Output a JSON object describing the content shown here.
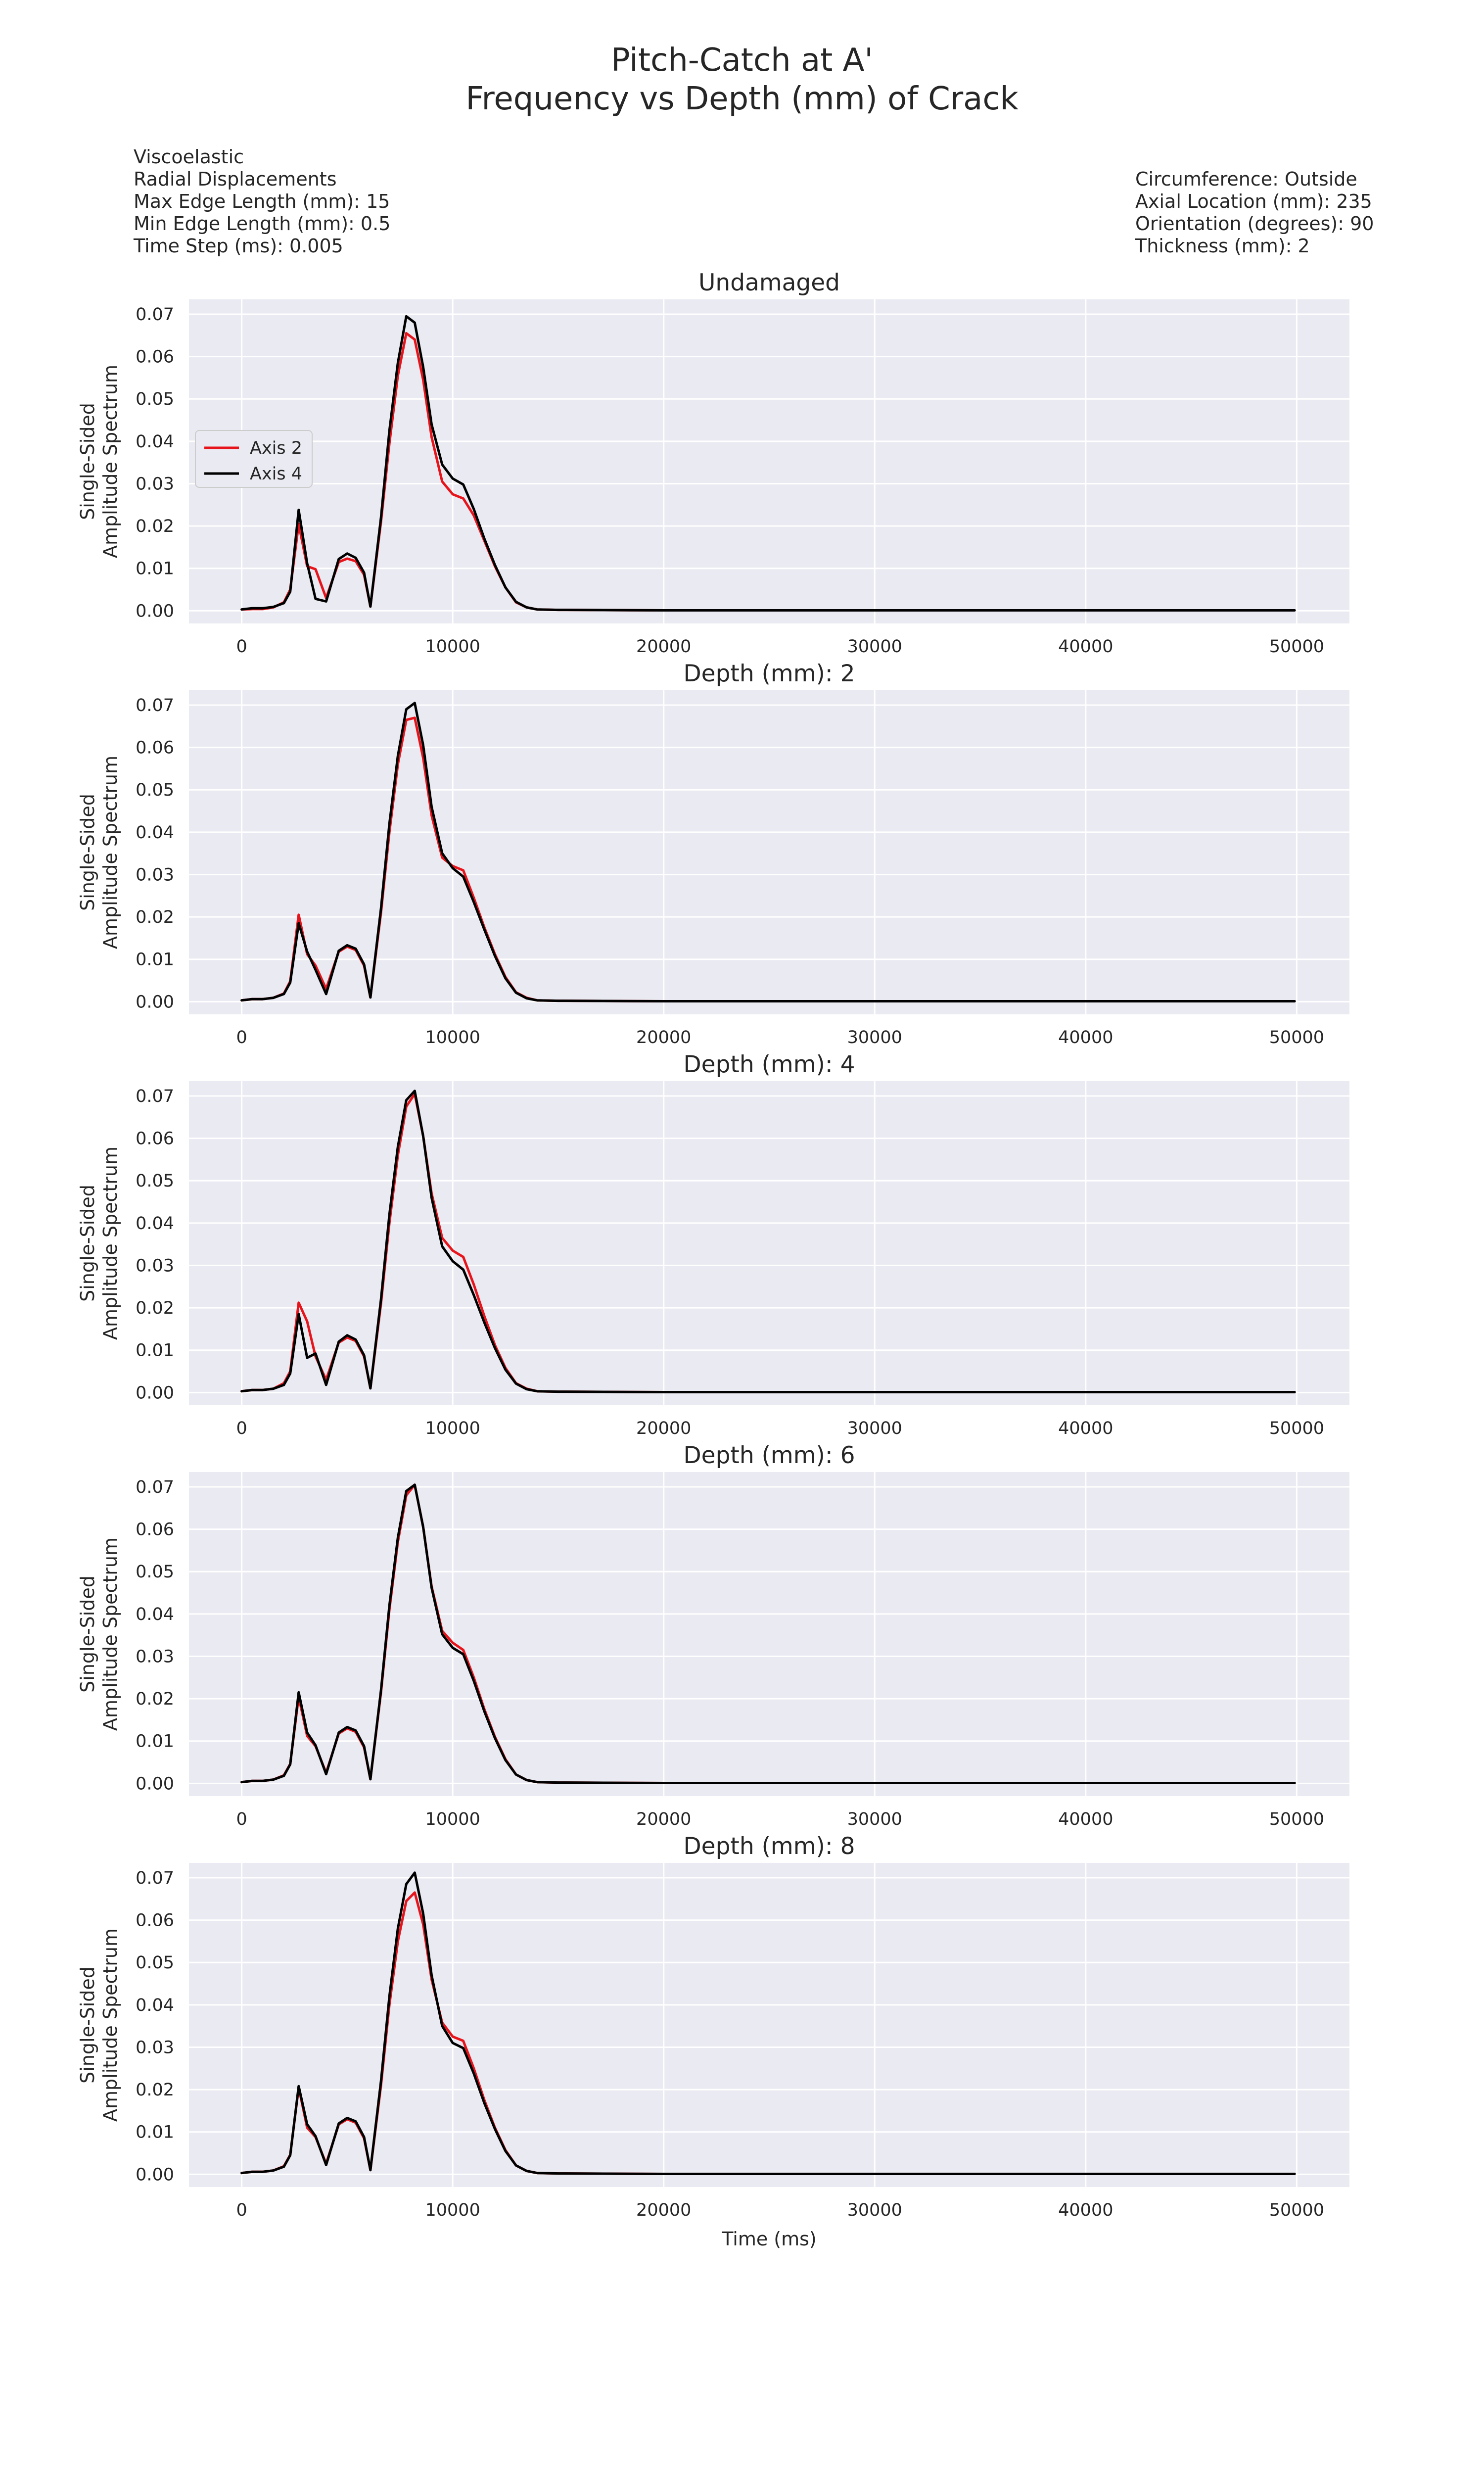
{
  "figure": {
    "title_line1": "Pitch-Catch at A'",
    "title_line2": "Frequency vs Depth (mm) of Crack",
    "info_left": [
      "Viscoelastic",
      "Radial Displacements",
      "Max Edge Length (mm): 15",
      "Min Edge Length (mm): 0.5",
      "Time Step (ms): 0.005"
    ],
    "info_right": [
      "Circumference: Outside",
      "Axial Location (mm): 235",
      "Orientation (degrees): 90",
      "Thickness (mm): 2"
    ]
  },
  "colors": {
    "axes_bg": "#EAEAF2",
    "grid": "#FFFFFF",
    "axis2": "#E8141C",
    "axis4": "#000000"
  },
  "chart_data": [
    {
      "type": "line",
      "title": "Undamaged",
      "xlabel": "",
      "ylabel": [
        "Single-Sided",
        "Amplitude Spectrum"
      ],
      "xlim": [
        -2500,
        52500
      ],
      "ylim": [
        -0.003,
        0.0735
      ],
      "xticks": [
        "0",
        "10000",
        "20000",
        "30000",
        "40000",
        "50000"
      ],
      "yticks": [
        "0.00",
        "0.01",
        "0.02",
        "0.03",
        "0.04",
        "0.05",
        "0.06",
        "0.07"
      ],
      "grid": true,
      "legend": {
        "show": true,
        "placement": "center-left"
      },
      "x": [
        0,
        500,
        1000,
        1500,
        2000,
        2300,
        2700,
        3100,
        3500,
        4000,
        4600,
        5000,
        5400,
        5800,
        6100,
        6600,
        7000,
        7400,
        7800,
        8200,
        8600,
        9000,
        9500,
        10000,
        10500,
        11000,
        11500,
        12000,
        12500,
        13000,
        13500,
        14000,
        15000,
        20000,
        30000,
        40000,
        49900
      ],
      "series": [
        {
          "name": "Axis 2",
          "values": [
            0.0003,
            0.0004,
            0.0004,
            0.0008,
            0.002,
            0.005,
            0.0205,
            0.0105,
            0.0098,
            0.003,
            0.0115,
            0.0123,
            0.0117,
            0.0085,
            0.001,
            0.021,
            0.0395,
            0.0555,
            0.0655,
            0.064,
            0.0545,
            0.041,
            0.0305,
            0.0275,
            0.0265,
            0.0225,
            0.0165,
            0.0105,
            0.0055,
            0.002,
            0.0008,
            0.0003,
            0.0002,
            0.0001,
            0.0001,
            0.0001,
            0.0001
          ]
        },
        {
          "name": "Axis 4",
          "values": [
            0.0003,
            0.0006,
            0.0006,
            0.0009,
            0.0018,
            0.0045,
            0.0238,
            0.0112,
            0.0028,
            0.0022,
            0.0122,
            0.0135,
            0.0125,
            0.009,
            0.001,
            0.022,
            0.0425,
            0.0585,
            0.0695,
            0.068,
            0.0575,
            0.044,
            0.0345,
            0.0312,
            0.0298,
            0.024,
            0.017,
            0.0108,
            0.0055,
            0.0021,
            0.0008,
            0.0003,
            0.0002,
            0.0001,
            0.0001,
            0.0001,
            0.0001
          ]
        }
      ]
    },
    {
      "type": "line",
      "title": "Depth (mm): 2",
      "xlabel": "",
      "ylabel": [
        "Single-Sided",
        "Amplitude Spectrum"
      ],
      "xlim": [
        -2500,
        52500
      ],
      "ylim": [
        -0.003,
        0.0735
      ],
      "xticks": [
        "0",
        "10000",
        "20000",
        "30000",
        "40000",
        "50000"
      ],
      "yticks": [
        "0.00",
        "0.01",
        "0.02",
        "0.03",
        "0.04",
        "0.05",
        "0.06",
        "0.07"
      ],
      "grid": true,
      "legend": {
        "show": false
      },
      "x": [
        0,
        500,
        1000,
        1500,
        2000,
        2300,
        2700,
        3100,
        3500,
        4000,
        4600,
        5000,
        5400,
        5800,
        6100,
        6600,
        7000,
        7400,
        7800,
        8200,
        8600,
        9000,
        9500,
        10000,
        10500,
        11000,
        11500,
        12000,
        12500,
        13000,
        13500,
        14000,
        15000,
        20000,
        30000,
        40000,
        49900
      ],
      "series": [
        {
          "name": "Axis 2",
          "values": [
            0.0003,
            0.0006,
            0.0006,
            0.0009,
            0.0019,
            0.0048,
            0.0205,
            0.0112,
            0.0085,
            0.003,
            0.0118,
            0.013,
            0.0122,
            0.0085,
            0.001,
            0.021,
            0.04,
            0.056,
            0.0665,
            0.067,
            0.0575,
            0.044,
            0.034,
            0.032,
            0.031,
            0.0245,
            0.0175,
            0.0112,
            0.0058,
            0.0022,
            0.0009,
            0.0003,
            0.0002,
            0.0001,
            0.0001,
            0.0001,
            0.0001
          ]
        },
        {
          "name": "Axis 4",
          "values": [
            0.0003,
            0.0006,
            0.0006,
            0.0009,
            0.0018,
            0.0045,
            0.0185,
            0.0118,
            0.0075,
            0.0018,
            0.012,
            0.0133,
            0.0125,
            0.0088,
            0.001,
            0.022,
            0.042,
            0.058,
            0.069,
            0.0705,
            0.0605,
            0.046,
            0.035,
            0.0315,
            0.0295,
            0.0235,
            0.017,
            0.0108,
            0.0055,
            0.0021,
            0.0008,
            0.0003,
            0.0002,
            0.0001,
            0.0001,
            0.0001,
            0.0001
          ]
        }
      ]
    },
    {
      "type": "line",
      "title": "Depth (mm): 4",
      "xlabel": "",
      "ylabel": [
        "Single-Sided",
        "Amplitude Spectrum"
      ],
      "xlim": [
        -2500,
        52500
      ],
      "ylim": [
        -0.003,
        0.0735
      ],
      "xticks": [
        "0",
        "10000",
        "20000",
        "30000",
        "40000",
        "50000"
      ],
      "yticks": [
        "0.00",
        "0.01",
        "0.02",
        "0.03",
        "0.04",
        "0.05",
        "0.06",
        "0.07"
      ],
      "grid": true,
      "legend": {
        "show": false
      },
      "x": [
        0,
        500,
        1000,
        1500,
        2000,
        2300,
        2700,
        3100,
        3500,
        4000,
        4600,
        5000,
        5400,
        5800,
        6100,
        6600,
        7000,
        7400,
        7800,
        8200,
        8600,
        9000,
        9500,
        10000,
        10500,
        11000,
        11500,
        12000,
        12500,
        13000,
        13500,
        14000,
        15000,
        20000,
        30000,
        40000,
        49900
      ],
      "series": [
        {
          "name": "Axis 2",
          "values": [
            0.0003,
            0.0006,
            0.0006,
            0.0009,
            0.0022,
            0.005,
            0.0212,
            0.0168,
            0.0085,
            0.003,
            0.0118,
            0.013,
            0.0122,
            0.0085,
            0.001,
            0.021,
            0.04,
            0.056,
            0.0675,
            0.0705,
            0.0605,
            0.047,
            0.0365,
            0.0335,
            0.032,
            0.0255,
            0.018,
            0.0112,
            0.0058,
            0.0022,
            0.0009,
            0.0003,
            0.0002,
            0.0001,
            0.0001,
            0.0001,
            0.0001
          ]
        },
        {
          "name": "Axis 4",
          "values": [
            0.0003,
            0.0006,
            0.0006,
            0.0009,
            0.0018,
            0.0045,
            0.0185,
            0.0082,
            0.0092,
            0.0018,
            0.012,
            0.0135,
            0.0125,
            0.0088,
            0.001,
            0.022,
            0.042,
            0.058,
            0.069,
            0.0712,
            0.0605,
            0.046,
            0.0345,
            0.031,
            0.029,
            0.023,
            0.0165,
            0.0105,
            0.0054,
            0.0021,
            0.0008,
            0.0003,
            0.0002,
            0.0001,
            0.0001,
            0.0001,
            0.0001
          ]
        }
      ]
    },
    {
      "type": "line",
      "title": "Depth (mm): 6",
      "xlabel": "",
      "ylabel": [
        "Single-Sided",
        "Amplitude Spectrum"
      ],
      "xlim": [
        -2500,
        52500
      ],
      "ylim": [
        -0.003,
        0.0735
      ],
      "xticks": [
        "0",
        "10000",
        "20000",
        "30000",
        "40000",
        "50000"
      ],
      "yticks": [
        "0.00",
        "0.01",
        "0.02",
        "0.03",
        "0.04",
        "0.05",
        "0.06",
        "0.07"
      ],
      "grid": true,
      "legend": {
        "show": false
      },
      "x": [
        0,
        500,
        1000,
        1500,
        2000,
        2300,
        2700,
        3100,
        3500,
        4000,
        4600,
        5000,
        5400,
        5800,
        6100,
        6600,
        7000,
        7400,
        7800,
        8200,
        8600,
        9000,
        9500,
        10000,
        10500,
        11000,
        11500,
        12000,
        12500,
        13000,
        13500,
        14000,
        15000,
        20000,
        30000,
        40000,
        49900
      ],
      "series": [
        {
          "name": "Axis 2",
          "values": [
            0.0003,
            0.0006,
            0.0006,
            0.0009,
            0.0019,
            0.0046,
            0.0205,
            0.0112,
            0.0088,
            0.0025,
            0.0118,
            0.013,
            0.0122,
            0.0085,
            0.001,
            0.0215,
            0.041,
            0.057,
            0.068,
            0.0705,
            0.0605,
            0.0465,
            0.036,
            0.0332,
            0.0315,
            0.025,
            0.0175,
            0.011,
            0.0057,
            0.0021,
            0.0008,
            0.0003,
            0.0002,
            0.0001,
            0.0001,
            0.0001,
            0.0001
          ]
        },
        {
          "name": "Axis 4",
          "values": [
            0.0003,
            0.0006,
            0.0006,
            0.0009,
            0.0018,
            0.0045,
            0.0215,
            0.012,
            0.009,
            0.0022,
            0.012,
            0.0133,
            0.0125,
            0.0088,
            0.001,
            0.022,
            0.042,
            0.058,
            0.069,
            0.0705,
            0.0605,
            0.0462,
            0.0352,
            0.032,
            0.0305,
            0.0242,
            0.017,
            0.0107,
            0.0055,
            0.0021,
            0.0008,
            0.0003,
            0.0002,
            0.0001,
            0.0001,
            0.0001,
            0.0001
          ]
        }
      ]
    },
    {
      "type": "line",
      "title": "Depth (mm): 8",
      "xlabel": "Time (ms)",
      "ylabel": [
        "Single-Sided",
        "Amplitude Spectrum"
      ],
      "xlim": [
        -2500,
        52500
      ],
      "ylim": [
        -0.003,
        0.0735
      ],
      "xticks": [
        "0",
        "10000",
        "20000",
        "30000",
        "40000",
        "50000"
      ],
      "yticks": [
        "0.00",
        "0.01",
        "0.02",
        "0.03",
        "0.04",
        "0.05",
        "0.06",
        "0.07"
      ],
      "grid": true,
      "legend": {
        "show": false
      },
      "x": [
        0,
        500,
        1000,
        1500,
        2000,
        2300,
        2700,
        3100,
        3500,
        4000,
        4600,
        5000,
        5400,
        5800,
        6100,
        6600,
        7000,
        7400,
        7800,
        8200,
        8600,
        9000,
        9500,
        10000,
        10500,
        11000,
        11500,
        12000,
        12500,
        13000,
        13500,
        14000,
        15000,
        20000,
        30000,
        40000,
        49900
      ],
      "series": [
        {
          "name": "Axis 2",
          "values": [
            0.0003,
            0.0006,
            0.0006,
            0.0009,
            0.0019,
            0.0046,
            0.0205,
            0.011,
            0.0088,
            0.0025,
            0.0118,
            0.013,
            0.0122,
            0.0085,
            0.001,
            0.021,
            0.04,
            0.055,
            0.0645,
            0.0665,
            0.059,
            0.046,
            0.0358,
            0.0325,
            0.0315,
            0.025,
            0.0175,
            0.011,
            0.0057,
            0.0021,
            0.0008,
            0.0003,
            0.0002,
            0.0001,
            0.0001,
            0.0001,
            0.0001
          ]
        },
        {
          "name": "Axis 4",
          "values": [
            0.0003,
            0.0006,
            0.0006,
            0.0009,
            0.0018,
            0.0045,
            0.0208,
            0.0118,
            0.009,
            0.0022,
            0.012,
            0.0133,
            0.0125,
            0.0088,
            0.001,
            0.022,
            0.042,
            0.058,
            0.0685,
            0.0712,
            0.0615,
            0.047,
            0.035,
            0.031,
            0.0298,
            0.0238,
            0.0168,
            0.0107,
            0.0055,
            0.0021,
            0.0008,
            0.0003,
            0.0002,
            0.0001,
            0.0001,
            0.0001,
            0.0001
          ]
        }
      ]
    }
  ]
}
